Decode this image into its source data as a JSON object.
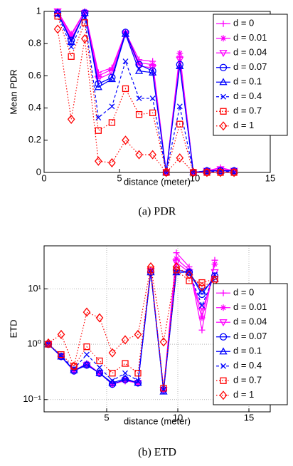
{
  "chart_data": [
    {
      "type": "line",
      "ylabel": "Mean PDR",
      "xlabel": "distance (meter)",
      "caption": "(a) PDR",
      "x": [
        0.9,
        1.8,
        2.7,
        3.6,
        4.5,
        5.4,
        6.3,
        7.2,
        8.1,
        9.0,
        9.9,
        10.8,
        11.7,
        12.6
      ],
      "xlim": [
        0,
        15
      ],
      "xticks": [
        0,
        5,
        10,
        15
      ],
      "ylim": [
        0,
        1
      ],
      "yticks": [
        0,
        0.2,
        0.4,
        0.6,
        0.8,
        1
      ],
      "grid": false,
      "log_y": false,
      "legend": "upper right",
      "series": [
        {
          "name": "d = 0",
          "color": "#ff00ff",
          "marker": "plus",
          "dash": "solid",
          "values": [
            1,
            0.86,
            1,
            0.62,
            0.65,
            0.87,
            0.7,
            0.69,
            0,
            0.72,
            0,
            0.01,
            0.03,
            0.01
          ]
        },
        {
          "name": "d = 0.01",
          "color": "#ff00ff",
          "marker": "star",
          "dash": "solid",
          "values": [
            1,
            0.85,
            1,
            0.6,
            0.64,
            0.87,
            0.68,
            0.67,
            0,
            0.74,
            0,
            0.01,
            0.02,
            0.01
          ]
        },
        {
          "name": "d = 0.04",
          "color": "#ff00ff",
          "marker": "triangle-down",
          "dash": "solid",
          "values": [
            1,
            0.83,
            0.99,
            0.58,
            0.62,
            0.86,
            0.66,
            0.65,
            0,
            0.7,
            0,
            0.01,
            0.02,
            0.01
          ]
        },
        {
          "name": "d = 0.07",
          "color": "#0000ff",
          "marker": "circle",
          "dash": "solid",
          "values": [
            0.99,
            0.82,
            0.99,
            0.55,
            0.59,
            0.87,
            0.67,
            0.63,
            0,
            0.67,
            0,
            0.01,
            0.01,
            0.01
          ]
        },
        {
          "name": "d = 0.1",
          "color": "#0000ff",
          "marker": "triangle-up",
          "dash": "solid",
          "values": [
            0.99,
            0.81,
            0.99,
            0.53,
            0.58,
            0.86,
            0.63,
            0.62,
            0,
            0.66,
            0,
            0.01,
            0.01,
            0.01
          ]
        },
        {
          "name": "d = 0.4",
          "color": "#0000ff",
          "marker": "x",
          "dash": "dashed",
          "values": [
            0.98,
            0.78,
            0.96,
            0.34,
            0.41,
            0.69,
            0.46,
            0.46,
            0,
            0.41,
            0,
            0,
            0.01,
            0
          ]
        },
        {
          "name": "d = 0.7",
          "color": "#ff0000",
          "marker": "square",
          "dash": "dotted",
          "values": [
            0.97,
            0.72,
            0.93,
            0.26,
            0.31,
            0.52,
            0.36,
            0.37,
            0,
            0.3,
            0,
            0,
            0,
            0
          ]
        },
        {
          "name": "d = 1",
          "color": "#ff0000",
          "marker": "diamond",
          "dash": "dotted",
          "values": [
            0.89,
            0.33,
            0.83,
            0.07,
            0.06,
            0.2,
            0.11,
            0.11,
            0,
            0.09,
            0,
            0,
            0,
            0
          ]
        }
      ]
    },
    {
      "type": "line",
      "ylabel": "ETD",
      "xlabel": "distance (meter)",
      "caption": "(b) ETD",
      "x": [
        0.9,
        1.8,
        2.7,
        3.6,
        4.5,
        5.4,
        6.3,
        7.2,
        8.1,
        9.0,
        9.9,
        10.8,
        11.7,
        12.6
      ],
      "xlim": [
        0.6,
        16.5
      ],
      "xticks": [
        5,
        10,
        15
      ],
      "ylim": [
        0.06,
        60
      ],
      "yticks": [
        {
          "value": 0.1,
          "label": "10⁻¹"
        },
        {
          "value": 1,
          "label": "10⁰"
        },
        {
          "value": 10,
          "label": "10¹"
        }
      ],
      "grid": true,
      "log_y": true,
      "legend": "lower right",
      "series": [
        {
          "name": "d = 0",
          "color": "#ff00ff",
          "marker": "plus",
          "dash": "solid",
          "values": [
            1,
            0.6,
            0.33,
            0.45,
            0.3,
            0.19,
            0.22,
            0.2,
            22,
            0.15,
            45,
            25,
            1.8,
            33
          ]
        },
        {
          "name": "d = 0.01",
          "color": "#ff00ff",
          "marker": "star",
          "dash": "solid",
          "values": [
            1,
            0.6,
            0.33,
            0.45,
            0.3,
            0.19,
            0.22,
            0.2,
            21,
            0.15,
            35,
            22,
            3,
            28
          ]
        },
        {
          "name": "d = 0.04",
          "color": "#ff00ff",
          "marker": "triangle-down",
          "dash": "solid",
          "values": [
            1,
            0.6,
            0.33,
            0.42,
            0.3,
            0.19,
            0.22,
            0.2,
            21,
            0.15,
            30,
            20,
            4,
            20
          ]
        },
        {
          "name": "d = 0.07",
          "color": "#0000ff",
          "marker": "circle",
          "dash": "solid",
          "values": [
            1,
            0.6,
            0.33,
            0.42,
            0.3,
            0.19,
            0.23,
            0.2,
            20,
            0.15,
            22,
            20,
            8,
            17
          ]
        },
        {
          "name": "d = 0.1",
          "color": "#0000ff",
          "marker": "triangle-up",
          "dash": "solid",
          "values": [
            1,
            0.6,
            0.34,
            0.43,
            0.3,
            0.2,
            0.24,
            0.2,
            20,
            0.14,
            20,
            20,
            9,
            15
          ]
        },
        {
          "name": "d = 0.4",
          "color": "#0000ff",
          "marker": "x",
          "dash": "dashed",
          "values": [
            1,
            0.62,
            0.36,
            0.65,
            0.38,
            0.22,
            0.3,
            0.22,
            21,
            0.15,
            20,
            20,
            5,
            18
          ]
        },
        {
          "name": "d = 0.7",
          "color": "#ff0000",
          "marker": "square",
          "dash": "dotted",
          "values": [
            1,
            0.65,
            0.4,
            0.9,
            0.5,
            0.3,
            0.45,
            0.3,
            22,
            0.16,
            22,
            14,
            13,
            15
          ]
        },
        {
          "name": "d = 1",
          "color": "#ff0000",
          "marker": "diamond",
          "dash": "dotted",
          "values": [
            1.05,
            1.5,
            0.4,
            3.8,
            3,
            0.7,
            1.2,
            1.5,
            25,
            1.1,
            25,
            18,
            11,
            14
          ]
        }
      ]
    }
  ]
}
